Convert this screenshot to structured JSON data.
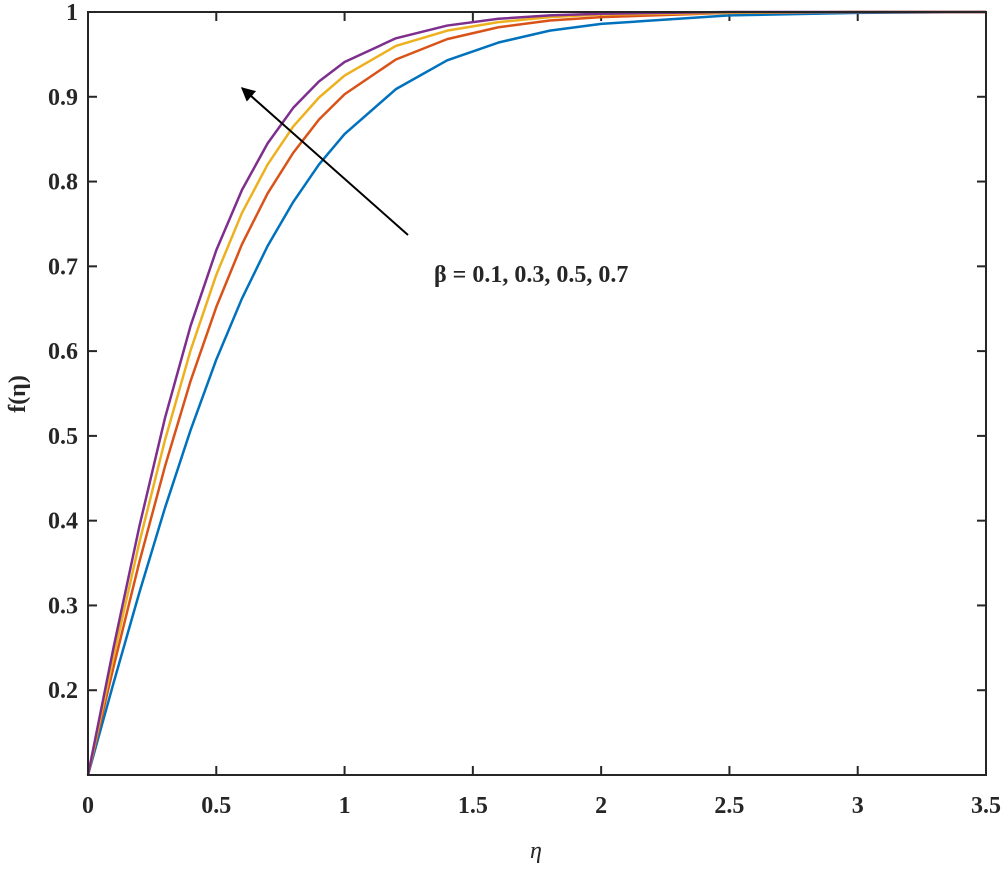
{
  "chart_data": {
    "type": "line",
    "xlabel": "η",
    "ylabel": "f(η)",
    "annotation": "β = 0.1, 0.3, 0.5, 0.7",
    "x": [
      0,
      0.1,
      0.2,
      0.3,
      0.4,
      0.5,
      0.6,
      0.7,
      0.8,
      0.9,
      1.0,
      1.2,
      1.4,
      1.6,
      1.8,
      2.0,
      2.5,
      3.0,
      3.5
    ],
    "series": [
      {
        "color": "#0072BD",
        "values": [
          0.1,
          0.209,
          0.315,
          0.415,
          0.507,
          0.59,
          0.662,
          0.724,
          0.776,
          0.82,
          0.856,
          0.909,
          0.943,
          0.964,
          0.978,
          0.986,
          0.996,
          0.999,
          1.0
        ]
      },
      {
        "color": "#D95319",
        "values": [
          0.1,
          0.228,
          0.351,
          0.464,
          0.565,
          0.652,
          0.726,
          0.786,
          0.834,
          0.873,
          0.903,
          0.944,
          0.968,
          0.982,
          0.99,
          0.994,
          0.999,
          1.0,
          1.0
        ]
      },
      {
        "color": "#EDB120",
        "values": [
          0.1,
          0.24,
          0.374,
          0.495,
          0.601,
          0.69,
          0.763,
          0.82,
          0.865,
          0.899,
          0.925,
          0.96,
          0.978,
          0.988,
          0.994,
          0.997,
          0.999,
          1.0,
          1.0
        ]
      },
      {
        "color": "#7E2F8E",
        "values": [
          0.1,
          0.251,
          0.393,
          0.521,
          0.63,
          0.719,
          0.79,
          0.845,
          0.887,
          0.918,
          0.941,
          0.969,
          0.984,
          0.992,
          0.996,
          0.998,
          1.0,
          1.0,
          1.0
        ]
      }
    ],
    "xlim": [
      0,
      3.5
    ],
    "xticks": [
      0,
      0.5,
      1,
      1.5,
      2,
      2.5,
      3,
      3.5
    ],
    "ylim": [
      0.1,
      1
    ],
    "yticks": [
      0.2,
      0.3,
      0.4,
      0.5,
      0.6,
      0.7,
      0.8,
      0.9,
      1
    ],
    "grid": false
  }
}
